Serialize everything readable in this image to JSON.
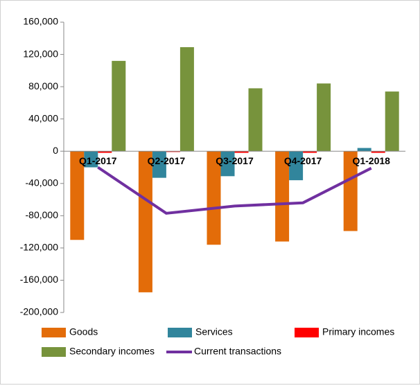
{
  "chart_data": {
    "type": "bar",
    "categories": [
      "Q1-2017",
      "Q2-2017",
      "Q3-2017",
      "Q4-2017",
      "Q1-2018"
    ],
    "series": [
      {
        "name": "Goods",
        "color": "#e36c09",
        "values": [
          -110000,
          -175000,
          -116000,
          -112000,
          -99000
        ]
      },
      {
        "name": "Services",
        "color": "#31859c",
        "values": [
          -20000,
          -33000,
          -31000,
          -36000,
          4000
        ]
      },
      {
        "name": "Primary incomes",
        "color": "#ff0000",
        "values": [
          -2000,
          -1000,
          -2000,
          -2000,
          -2000
        ]
      },
      {
        "name": "Secondary incomes",
        "color": "#77933c",
        "values": [
          112000,
          129000,
          78000,
          84000,
          74000
        ]
      },
      {
        "name": "Current transactions",
        "type": "line",
        "color": "#7030a0",
        "values": [
          -20000,
          -77000,
          -68000,
          -64000,
          -21000
        ]
      }
    ],
    "ylim": [
      -200000,
      160000
    ],
    "yticks": [
      {
        "value": -200000,
        "label": "-200,000"
      },
      {
        "value": -160000,
        "label": "-160,000"
      },
      {
        "value": -120000,
        "label": "-120,000"
      },
      {
        "value": -80000,
        "label": "-80,000"
      },
      {
        "value": -40000,
        "label": "-40,000"
      },
      0,
      {
        "value": 40000,
        "label": "40,000"
      },
      {
        "value": 80000,
        "label": "80,000"
      },
      {
        "value": 120000,
        "label": "120,000"
      },
      {
        "value": 160000,
        "label": "160,000"
      }
    ]
  }
}
